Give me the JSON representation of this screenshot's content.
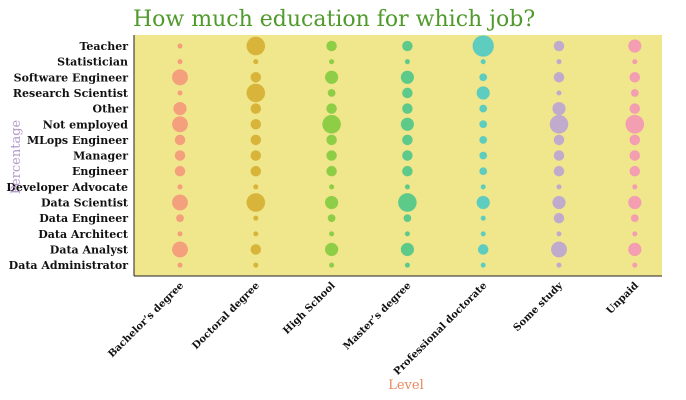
{
  "chart_data": {
    "type": "scatter",
    "title": "How much education for which job?",
    "xlabel": "Level",
    "ylabel": "Percentage",
    "x_categories": [
      "Bachelor’s degree",
      "Doctoral degree",
      "High School",
      "Master’s degree",
      "Professional doctorate",
      "Some study",
      "Unpaid"
    ],
    "y_categories": [
      "Teacher",
      "Statistician",
      "Software Engineer",
      "Research Scientist",
      "Other",
      "Not employed",
      "MLops Engineer",
      "Manager",
      "Engineer",
      "Developer Advocate",
      "Data Scientist",
      "Data Engineer",
      "Data Architect",
      "Data Analyst",
      "Data Administrator"
    ],
    "size_values": [
      [
        1,
        6,
        3,
        3,
        7,
        3,
        4
      ],
      [
        1,
        1,
        1,
        1,
        1,
        1,
        1
      ],
      [
        5,
        3,
        4,
        4,
        2,
        3,
        3
      ],
      [
        1,
        6,
        2,
        3,
        4,
        1,
        2
      ],
      [
        4,
        3,
        3,
        3,
        2,
        4,
        3
      ],
      [
        5,
        3,
        6,
        4,
        2,
        6,
        6
      ],
      [
        3,
        3,
        3,
        3,
        2,
        3,
        3
      ],
      [
        3,
        3,
        3,
        3,
        2,
        3,
        3
      ],
      [
        3,
        3,
        3,
        3,
        2,
        3,
        3
      ],
      [
        1,
        1,
        1,
        1,
        1,
        1,
        1
      ],
      [
        5,
        6,
        4,
        6,
        4,
        4,
        4
      ],
      [
        2,
        1,
        2,
        2,
        1,
        3,
        2
      ],
      [
        1,
        1,
        1,
        1,
        1,
        1,
        1
      ],
      [
        5,
        3,
        4,
        4,
        3,
        5,
        4
      ],
      [
        1,
        1,
        1,
        1,
        1,
        1,
        1
      ]
    ],
    "colors": [
      "#f4937a",
      "#d4ac2c",
      "#7cc93a",
      "#44c48a",
      "#44c8c8",
      "#b8a0d8",
      "#f490b8"
    ],
    "background": "#f0e68c",
    "grid": false,
    "legend": "none"
  }
}
